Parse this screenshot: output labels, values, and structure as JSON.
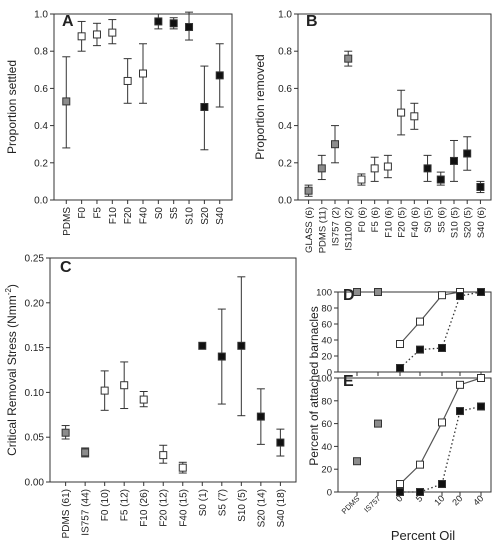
{
  "colors": {
    "gray": "#8c8c8c",
    "white": "#ffffff",
    "black": "#111111",
    "edge": "#333333"
  },
  "panels": [
    {
      "id": "A",
      "panel_label": "A",
      "ylabel": "Proportion settled",
      "ylim": [
        0.0,
        1.0
      ],
      "yticks": [
        0.0,
        0.2,
        0.4,
        0.6,
        0.8,
        1.0
      ],
      "ytick_labels": [
        "0.0",
        "0.2",
        "0.4",
        "0.6",
        "0.8",
        "1.0"
      ],
      "categories": [
        "PDMS",
        "F0",
        "F5",
        "F10",
        "F20",
        "F40",
        "S0",
        "S5",
        "S10",
        "S20",
        "S40"
      ],
      "values": [
        0.53,
        0.88,
        0.89,
        0.9,
        0.64,
        0.68,
        0.96,
        0.95,
        0.93,
        0.5,
        0.67
      ],
      "err_low": [
        0.28,
        0.8,
        0.83,
        0.84,
        0.52,
        0.52,
        0.92,
        0.92,
        0.86,
        0.27,
        0.5
      ],
      "err_high": [
        0.77,
        0.96,
        0.95,
        0.97,
        0.76,
        0.84,
        1.0,
        0.98,
        1.01,
        0.72,
        0.84
      ],
      "styles": [
        "gray",
        "white",
        "white",
        "white",
        "white",
        "white",
        "black",
        "black",
        "black",
        "black",
        "black"
      ]
    },
    {
      "id": "B",
      "panel_label": "B",
      "ylabel": "Proportion removed",
      "ylim": [
        0.0,
        1.0
      ],
      "yticks": [
        0.0,
        0.2,
        0.4,
        0.6,
        0.8,
        1.0
      ],
      "ytick_labels": [
        "0.0",
        "0.2",
        "0.4",
        "0.6",
        "0.8",
        "1.0"
      ],
      "categories": [
        "GLASS (6)",
        "PDMS (11)",
        "IS757 (2)",
        "IS1100 (2)",
        "F0 (6)",
        "F5 (6)",
        "F10 (6)",
        "F20 (5)",
        "F40 (6)",
        "S0 (5)",
        "S5 (6)",
        "S10 (5)",
        "S20 (5)",
        "S40 (6)"
      ],
      "values": [
        0.05,
        0.17,
        0.3,
        0.76,
        0.11,
        0.17,
        0.18,
        0.47,
        0.45,
        0.17,
        0.11,
        0.21,
        0.25,
        0.07
      ],
      "err_low": [
        0.02,
        0.11,
        0.2,
        0.72,
        0.08,
        0.1,
        0.12,
        0.35,
        0.38,
        0.1,
        0.08,
        0.1,
        0.16,
        0.04
      ],
      "err_high": [
        0.08,
        0.24,
        0.4,
        0.8,
        0.14,
        0.23,
        0.24,
        0.59,
        0.52,
        0.24,
        0.15,
        0.32,
        0.34,
        0.1
      ],
      "styles": [
        "gray",
        "gray",
        "gray",
        "gray",
        "white",
        "white",
        "white",
        "white",
        "white",
        "black",
        "black",
        "black",
        "black",
        "black"
      ]
    },
    {
      "id": "C",
      "panel_label": "C",
      "ylabel_main": "Critical Removal Stress (Nmm",
      "ylabel_sup": "-2",
      "ylabel_end": ")",
      "ylim": [
        0.0,
        0.25
      ],
      "yticks": [
        0.0,
        0.05,
        0.1,
        0.15,
        0.2,
        0.25
      ],
      "ytick_labels": [
        "0.00",
        "0.05",
        "0.10",
        "0.15",
        "0.20",
        "0.25"
      ],
      "categories": [
        "PDMS (61)",
        "IS757 (44)",
        "F0 (10)",
        "F5 (12)",
        "F10 (26)",
        "F20 (12)",
        "F40 (15)",
        "S0 (1)",
        "S5 (7)",
        "S10 (5)",
        "S20 (14)",
        "S40 (18)"
      ],
      "values": [
        0.055,
        0.033,
        0.102,
        0.108,
        0.092,
        0.03,
        0.016,
        0.152,
        0.14,
        0.152,
        0.073,
        0.044
      ],
      "err_low": [
        0.048,
        0.028,
        0.08,
        0.082,
        0.084,
        0.021,
        0.01,
        null,
        0.087,
        0.074,
        0.042,
        0.029
      ],
      "err_high": [
        0.063,
        0.038,
        0.124,
        0.134,
        0.101,
        0.041,
        0.022,
        null,
        0.193,
        0.229,
        0.104,
        0.059
      ],
      "styles": [
        "gray",
        "gray",
        "white",
        "white",
        "white",
        "white",
        "white",
        "black",
        "black",
        "black",
        "black",
        "black"
      ]
    },
    {
      "id": "D",
      "panel_label": "D",
      "ylim": [
        0,
        100
      ],
      "yticks": [
        0,
        20,
        40,
        60,
        80,
        100
      ],
      "ytick_labels": [
        "0",
        "20",
        "40",
        "60",
        "80",
        "100"
      ],
      "refs": [
        {
          "label": "PDMS",
          "value": 100,
          "style": "gray"
        },
        {
          "label": "IS757",
          "value": 100,
          "style": "gray"
        }
      ],
      "oil_x": [
        "0",
        "5",
        "10",
        "20",
        "40"
      ],
      "series": [
        {
          "style": "white",
          "line": "solid",
          "values": [
            35,
            63,
            96,
            100,
            100
          ]
        },
        {
          "style": "black",
          "line": "dotted",
          "values": [
            5,
            28,
            30,
            95,
            100
          ]
        }
      ]
    },
    {
      "id": "E",
      "panel_label": "E",
      "ylim": [
        0,
        100
      ],
      "yticks": [
        0,
        20,
        40,
        60,
        80,
        100
      ],
      "ytick_labels": [
        "0",
        "20",
        "40",
        "60",
        "80",
        "100"
      ],
      "refs": [
        {
          "label": "PDMS",
          "value": 27,
          "style": "gray"
        },
        {
          "label": "IS757",
          "value": 60,
          "style": "gray"
        }
      ],
      "oil_x": [
        "0",
        "5",
        "10",
        "20",
        "40"
      ],
      "series": [
        {
          "style": "white",
          "line": "solid",
          "values": [
            7,
            24,
            61,
            94,
            100
          ]
        },
        {
          "style": "black",
          "line": "dotted",
          "values": [
            0,
            0,
            7,
            71,
            75
          ]
        }
      ]
    }
  ],
  "shared": {
    "de_ylabel": "Percent of attached barnacles",
    "de_xlabel": "Percent Oil",
    "de_xtick_labels": [
      "PDMS",
      "IS757",
      "0",
      "5",
      "10",
      "20",
      "40"
    ]
  }
}
